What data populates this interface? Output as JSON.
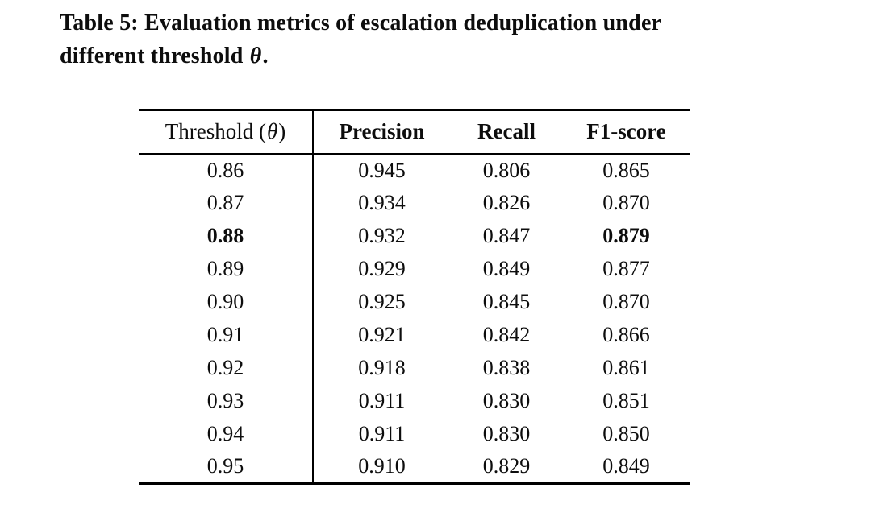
{
  "colors": {
    "text": "#0d0d0d",
    "background": "#ffffff",
    "rule": "#000000"
  },
  "caption": {
    "line1": "Table 5: Evaluation metrics of escalation deduplication under",
    "line2_prefix": "different threshold ",
    "symbol": "θ",
    "period": "."
  },
  "table": {
    "header": {
      "threshold_prefix": "Threshold (",
      "threshold_symbol": "θ",
      "threshold_suffix": ")",
      "precision": "Precision",
      "recall": "Recall",
      "f1": "F1-score"
    },
    "rows": [
      {
        "threshold": "0.86",
        "precision": "0.945",
        "recall": "0.806",
        "f1": "0.865",
        "emphasis": []
      },
      {
        "threshold": "0.87",
        "precision": "0.934",
        "recall": "0.826",
        "f1": "0.870",
        "emphasis": []
      },
      {
        "threshold": "0.88",
        "precision": "0.932",
        "recall": "0.847",
        "f1": "0.879",
        "emphasis": [
          "threshold",
          "f1"
        ]
      },
      {
        "threshold": "0.89",
        "precision": "0.929",
        "recall": "0.849",
        "f1": "0.877",
        "emphasis": []
      },
      {
        "threshold": "0.90",
        "precision": "0.925",
        "recall": "0.845",
        "f1": "0.870",
        "emphasis": []
      },
      {
        "threshold": "0.91",
        "precision": "0.921",
        "recall": "0.842",
        "f1": "0.866",
        "emphasis": []
      },
      {
        "threshold": "0.92",
        "precision": "0.918",
        "recall": "0.838",
        "f1": "0.861",
        "emphasis": []
      },
      {
        "threshold": "0.93",
        "precision": "0.911",
        "recall": "0.830",
        "f1": "0.851",
        "emphasis": []
      },
      {
        "threshold": "0.94",
        "precision": "0.911",
        "recall": "0.830",
        "f1": "0.850",
        "emphasis": []
      },
      {
        "threshold": "0.95",
        "precision": "0.910",
        "recall": "0.829",
        "f1": "0.849",
        "emphasis": []
      }
    ]
  }
}
